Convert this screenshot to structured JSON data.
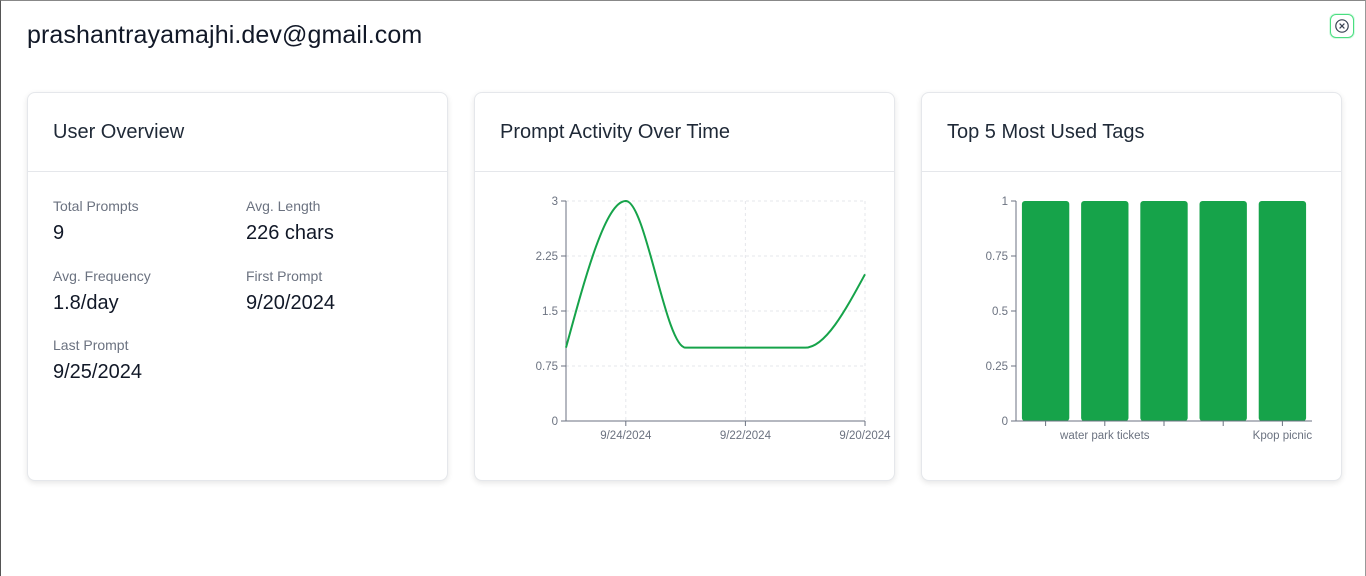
{
  "modal": {
    "title": "prashantrayamajhi.dev@gmail.com",
    "close_icon": "close-icon",
    "accent_color": "#16a34a"
  },
  "overview": {
    "title": "User Overview",
    "stats": [
      {
        "label": "Total Prompts",
        "value": "9"
      },
      {
        "label": "Avg. Length",
        "value": "226 chars"
      },
      {
        "label": "Avg. Frequency",
        "value": "1.8/day"
      },
      {
        "label": "First Prompt",
        "value": "9/20/2024"
      },
      {
        "label": "Last Prompt",
        "value": "9/25/2024"
      }
    ]
  },
  "activity": {
    "title": "Prompt Activity Over Time"
  },
  "tags": {
    "title": "Top 5 Most Used Tags"
  },
  "chart_data": [
    {
      "type": "line",
      "x": [
        "9/25/2024",
        "9/24/2024",
        "9/23/2024",
        "9/22/2024",
        "9/21/2024",
        "9/20/2024"
      ],
      "series": [
        {
          "values": [
            1,
            3,
            1,
            1,
            1,
            2
          ]
        }
      ],
      "x_tick_labels": [
        "9/24/2024",
        "9/22/2024",
        "9/20/2024"
      ],
      "y_ticks": [
        "0",
        "0.75",
        "1.5",
        "2.25",
        "3"
      ],
      "ylim": [
        0,
        3
      ],
      "grid": true,
      "color": "#16a34a"
    },
    {
      "type": "bar",
      "categories": [
        "",
        "water park tickets",
        "",
        "",
        "Kpop picnic"
      ],
      "x_tick_labels": [
        "water park tickets",
        "Kpop picnic"
      ],
      "values": [
        1,
        1,
        1,
        1,
        1
      ],
      "y_ticks": [
        "0",
        "0.25",
        "0.5",
        "0.75",
        "1"
      ],
      "ylim": [
        0,
        1
      ],
      "grid": false,
      "color": "#16a34a"
    }
  ]
}
